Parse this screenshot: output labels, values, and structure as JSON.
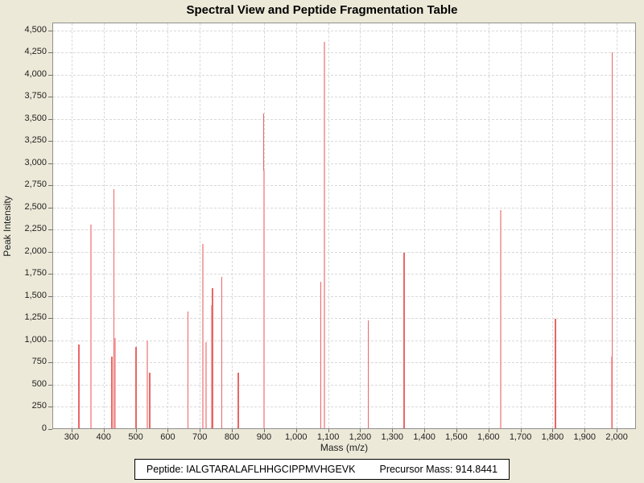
{
  "title": "Spectral View and Peptide Fragmentation Table",
  "colors": {
    "background": "#ece9d8",
    "plot_background": "#ffffff",
    "plot_border": "#8f8f8f",
    "gridline": "#d9d9d9",
    "tick": "#707070",
    "peak_light": "#f5a8a8",
    "peak_dark": "#ea6666"
  },
  "chart_data": {
    "type": "bar",
    "title": "Spectral View and Peptide Fragmentation Table",
    "xlabel": "Mass (m/z)",
    "ylabel": "Peak Intensity",
    "xlim": [
      240,
      2060
    ],
    "ylim": [
      0,
      4590
    ],
    "grid": true,
    "x_ticks": [
      {
        "v": 300,
        "label": "300"
      },
      {
        "v": 400,
        "label": "400"
      },
      {
        "v": 500,
        "label": "500"
      },
      {
        "v": 600,
        "label": "600"
      },
      {
        "v": 700,
        "label": "700"
      },
      {
        "v": 800,
        "label": "800"
      },
      {
        "v": 900,
        "label": "900"
      },
      {
        "v": 1000,
        "label": "1,000"
      },
      {
        "v": 1100,
        "label": "1,100"
      },
      {
        "v": 1200,
        "label": "1,200"
      },
      {
        "v": 1300,
        "label": "1,300"
      },
      {
        "v": 1400,
        "label": "1,400"
      },
      {
        "v": 1500,
        "label": "1,500"
      },
      {
        "v": 1600,
        "label": "1,600"
      },
      {
        "v": 1700,
        "label": "1,700"
      },
      {
        "v": 1800,
        "label": "1,800"
      },
      {
        "v": 1900,
        "label": "1,900"
      },
      {
        "v": 2000,
        "label": "2,000"
      }
    ],
    "y_ticks": [
      {
        "v": 0,
        "label": "0"
      },
      {
        "v": 250,
        "label": "250"
      },
      {
        "v": 500,
        "label": "500"
      },
      {
        "v": 750,
        "label": "750"
      },
      {
        "v": 1000,
        "label": "1,000"
      },
      {
        "v": 1250,
        "label": "1,250"
      },
      {
        "v": 1500,
        "label": "1,500"
      },
      {
        "v": 1750,
        "label": "1,750"
      },
      {
        "v": 2000,
        "label": "2,000"
      },
      {
        "v": 2250,
        "label": "2,250"
      },
      {
        "v": 2500,
        "label": "2,500"
      },
      {
        "v": 2750,
        "label": "2,750"
      },
      {
        "v": 3000,
        "label": "3,000"
      },
      {
        "v": 3250,
        "label": "3,250"
      },
      {
        "v": 3500,
        "label": "3,500"
      },
      {
        "v": 3750,
        "label": "3,750"
      },
      {
        "v": 4000,
        "label": "4,000"
      },
      {
        "v": 4250,
        "label": "4,250"
      },
      {
        "v": 4500,
        "label": "4,500"
      }
    ],
    "points": [
      {
        "mz": 320,
        "intensity": 960,
        "shade": "dark"
      },
      {
        "mz": 359,
        "intensity": 2320,
        "shade": "light"
      },
      {
        "mz": 423,
        "intensity": 825,
        "shade": "dark"
      },
      {
        "mz": 430,
        "intensity": 2720,
        "shade": "dark"
      },
      {
        "mz": 433,
        "intensity": 1035,
        "shade": "light"
      },
      {
        "mz": 498,
        "intensity": 940,
        "shade": "dark"
      },
      {
        "mz": 533,
        "intensity": 1005,
        "shade": "light"
      },
      {
        "mz": 541,
        "intensity": 650,
        "shade": "dark"
      },
      {
        "mz": 660,
        "intensity": 1340,
        "shade": "dark"
      },
      {
        "mz": 706,
        "intensity": 2100,
        "shade": "light"
      },
      {
        "mz": 716,
        "intensity": 995,
        "shade": "light"
      },
      {
        "mz": 734,
        "intensity": 1410,
        "shade": "light"
      },
      {
        "mz": 737,
        "intensity": 1600,
        "shade": "dark"
      },
      {
        "mz": 766,
        "intensity": 1730,
        "shade": "dark"
      },
      {
        "mz": 818,
        "intensity": 650,
        "shade": "dark"
      },
      {
        "mz": 896,
        "intensity": 3570,
        "shade": "dark"
      },
      {
        "mz": 898,
        "intensity": 2930,
        "shade": "light"
      },
      {
        "mz": 1075,
        "intensity": 1670,
        "shade": "dark"
      },
      {
        "mz": 1087,
        "intensity": 4380,
        "shade": "light"
      },
      {
        "mz": 1223,
        "intensity": 1240,
        "shade": "dark"
      },
      {
        "mz": 1335,
        "intensity": 2000,
        "shade": "dark"
      },
      {
        "mz": 1637,
        "intensity": 2480,
        "shade": "light"
      },
      {
        "mz": 1806,
        "intensity": 1250,
        "shade": "dark"
      },
      {
        "mz": 1981,
        "intensity": 830,
        "shade": "light"
      },
      {
        "mz": 1983,
        "intensity": 4260,
        "shade": "dark"
      }
    ]
  },
  "footer": {
    "peptide_text": "Peptide: IALGTARALAFLHHGCIPPMVHGEVK",
    "precursor_text": "Precursor Mass: 914.8441"
  }
}
